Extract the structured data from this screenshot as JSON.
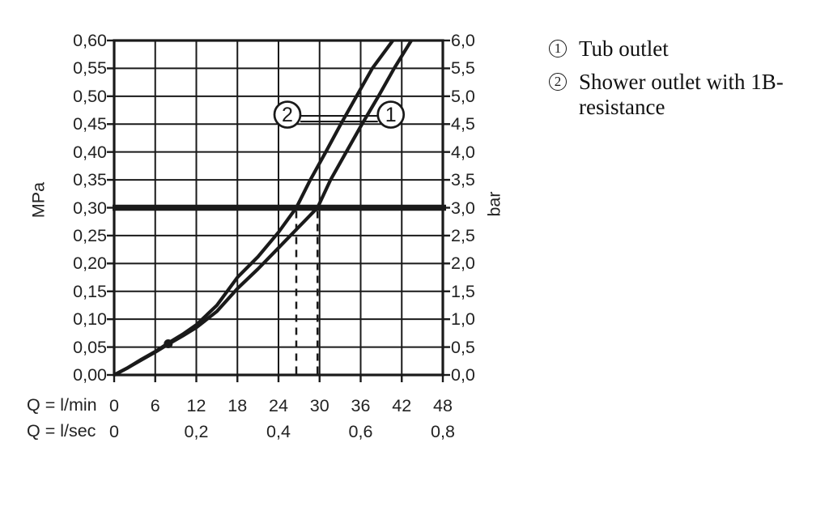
{
  "figure": {
    "background": "#ffffff",
    "ink_color": "#1a1a1a"
  },
  "chart_data": {
    "type": "line",
    "title": "",
    "grid": true,
    "x_axis": {
      "label_lmin": "Q = l/min",
      "ticks_lmin": [
        "0",
        "6",
        "12",
        "18",
        "24",
        "30",
        "36",
        "42",
        "48"
      ],
      "values_lmin": [
        0,
        6,
        12,
        18,
        24,
        30,
        36,
        42,
        48
      ],
      "label_lsec": "Q = l/sec",
      "ticks_lsec": [
        "0",
        "0,2",
        "0,4",
        "0,6",
        "0,8"
      ],
      "values_lsec": [
        0,
        0.2,
        0.4,
        0.6,
        0.8
      ],
      "lsec_positions_lmin": [
        0,
        12,
        24,
        36,
        48
      ],
      "range_lmin": [
        0,
        48
      ]
    },
    "y_axis_left": {
      "label": "MPa",
      "ticks": [
        "0,60",
        "0,55",
        "0,50",
        "0,45",
        "0,40",
        "0,35",
        "0,30",
        "0,25",
        "0,20",
        "0,15",
        "0,10",
        "0,05",
        "0,00"
      ],
      "values": [
        0.6,
        0.55,
        0.5,
        0.45,
        0.4,
        0.35,
        0.3,
        0.25,
        0.2,
        0.15,
        0.1,
        0.05,
        0.0
      ],
      "range": [
        0,
        0.6
      ]
    },
    "y_axis_right": {
      "label": "bar",
      "ticks": [
        "6,0",
        "5,5",
        "5,0",
        "4,5",
        "4,0",
        "3,5",
        "3,0",
        "2,5",
        "2,0",
        "1,5",
        "1,0",
        "0,5",
        "0,0"
      ],
      "values": [
        6.0,
        5.5,
        5.0,
        4.5,
        4.0,
        3.5,
        3.0,
        2.5,
        2.0,
        1.5,
        1.0,
        0.5,
        0.0
      ],
      "range": [
        0,
        6.0
      ]
    },
    "reference_line": {
      "mpa": 0.3,
      "bar": 3.0
    },
    "dashed_lines_lmin": [
      26.6,
      29.7
    ],
    "marker_point": {
      "lmin": 7.9,
      "mpa": 0.056
    },
    "series": [
      {
        "name": "Tub outlet",
        "curve_label": "1",
        "points": [
          [
            0,
            0
          ],
          [
            2,
            0.013
          ],
          [
            4,
            0.027
          ],
          [
            6,
            0.041
          ],
          [
            8,
            0.056
          ],
          [
            10,
            0.07
          ],
          [
            12,
            0.085
          ],
          [
            15,
            0.114
          ],
          [
            18,
            0.155
          ],
          [
            21,
            0.19
          ],
          [
            24,
            0.228
          ],
          [
            27,
            0.266
          ],
          [
            29.7,
            0.3
          ],
          [
            31.6,
            0.35
          ],
          [
            33.9,
            0.4
          ],
          [
            36.2,
            0.45
          ],
          [
            38.6,
            0.5
          ],
          [
            40.9,
            0.55
          ],
          [
            43.4,
            0.6
          ]
        ]
      },
      {
        "name": "Shower outlet with 1B-resistance",
        "curve_label": "2",
        "points": [
          [
            0,
            0
          ],
          [
            2,
            0.013
          ],
          [
            4,
            0.028
          ],
          [
            6,
            0.042
          ],
          [
            8,
            0.058
          ],
          [
            10,
            0.073
          ],
          [
            12,
            0.09
          ],
          [
            15,
            0.125
          ],
          [
            18,
            0.175
          ],
          [
            21,
            0.212
          ],
          [
            24,
            0.256
          ],
          [
            26.6,
            0.3
          ],
          [
            28.65,
            0.35
          ],
          [
            30.9,
            0.4
          ],
          [
            33.1,
            0.45
          ],
          [
            35.4,
            0.5
          ],
          [
            37.7,
            0.55
          ],
          [
            40.7,
            0.6
          ]
        ]
      }
    ],
    "curve_labels": [
      {
        "text": "2",
        "lmin": 25.3,
        "mpa": 0.467
      },
      {
        "text": "1",
        "lmin": 40.4,
        "mpa": 0.467
      }
    ]
  },
  "legend": {
    "items": [
      {
        "marker": "1",
        "label": "Tub outlet"
      },
      {
        "marker": "2",
        "label": "Shower outlet with 1B-resistance"
      }
    ]
  }
}
